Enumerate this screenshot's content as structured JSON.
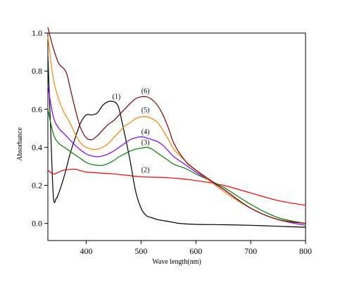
{
  "chart_data": {
    "type": "line",
    "title": "",
    "xlabel": "Wave length(nm)",
    "ylabel": "Absorbance",
    "xlim": [
      330,
      800
    ],
    "ylim": [
      -0.09,
      1.0
    ],
    "x_ticks": [
      400,
      500,
      600,
      700,
      800
    ],
    "x_tick_labels": [
      "400",
      "500",
      "600",
      "700",
      "800"
    ],
    "y_ticks": [
      0.0,
      0.2,
      0.4,
      0.6,
      0.8,
      1.0
    ],
    "y_tick_labels": [
      "0.0",
      "0.2",
      "0.4",
      "0.6",
      "0.8",
      "1.0"
    ],
    "grid": false,
    "series": [
      {
        "name": "(1)",
        "color": "#000000",
        "x": [
          330,
          335,
          340,
          345,
          350,
          360,
          370,
          380,
          390,
          400,
          410,
          420,
          430,
          440,
          450,
          455,
          460,
          470,
          480,
          490,
          500,
          510,
          520,
          530,
          540,
          550,
          560,
          570,
          600,
          650,
          700,
          750,
          800
        ],
        "y": [
          0.88,
          0.5,
          0.14,
          0.13,
          0.16,
          0.25,
          0.36,
          0.45,
          0.53,
          0.57,
          0.57,
          0.58,
          0.62,
          0.64,
          0.64,
          0.63,
          0.6,
          0.47,
          0.33,
          0.17,
          0.08,
          0.04,
          0.03,
          0.02,
          0.015,
          0.01,
          0.005,
          0.0,
          -0.005,
          -0.007,
          -0.01,
          -0.015,
          -0.02
        ]
      },
      {
        "name": "(2)",
        "color": "#ff0000",
        "x": [
          330,
          340,
          350,
          360,
          380,
          400,
          450,
          500,
          550,
          600,
          650,
          700,
          750,
          800
        ],
        "y": [
          0.28,
          0.26,
          0.27,
          0.28,
          0.285,
          0.27,
          0.26,
          0.245,
          0.24,
          0.225,
          0.2,
          0.16,
          0.12,
          0.095
        ]
      },
      {
        "name": "(3)",
        "color": "#008000",
        "x": [
          330,
          340,
          350,
          360,
          370,
          380,
          390,
          400,
          410,
          420,
          430,
          440,
          450,
          460,
          470,
          480,
          490,
          500,
          510,
          520,
          530,
          540,
          550,
          560,
          580,
          600,
          650,
          700,
          750,
          800
        ],
        "y": [
          0.6,
          0.47,
          0.42,
          0.4,
          0.38,
          0.36,
          0.34,
          0.32,
          0.31,
          0.305,
          0.305,
          0.315,
          0.33,
          0.35,
          0.365,
          0.38,
          0.39,
          0.395,
          0.4,
          0.39,
          0.37,
          0.35,
          0.33,
          0.31,
          0.29,
          0.26,
          0.19,
          0.1,
          0.03,
          0.0
        ]
      },
      {
        "name": "(4)",
        "color": "#8000ff",
        "x": [
          330,
          340,
          350,
          360,
          370,
          380,
          390,
          400,
          410,
          420,
          430,
          440,
          450,
          460,
          470,
          480,
          490,
          500,
          510,
          520,
          530,
          540,
          550,
          560,
          580,
          600,
          650,
          700,
          750,
          800
        ],
        "y": [
          0.72,
          0.56,
          0.5,
          0.47,
          0.44,
          0.41,
          0.385,
          0.365,
          0.355,
          0.35,
          0.355,
          0.365,
          0.38,
          0.4,
          0.42,
          0.44,
          0.45,
          0.455,
          0.45,
          0.44,
          0.43,
          0.41,
          0.38,
          0.35,
          0.31,
          0.27,
          0.18,
          0.08,
          0.02,
          -0.01
        ]
      },
      {
        "name": "(5)",
        "color": "#ff8000",
        "x": [
          330,
          340,
          350,
          360,
          370,
          380,
          390,
          400,
          410,
          420,
          430,
          440,
          450,
          460,
          470,
          480,
          490,
          500,
          510,
          520,
          530,
          540,
          550,
          560,
          580,
          600,
          650,
          700,
          750,
          800
        ],
        "y": [
          0.98,
          0.76,
          0.65,
          0.58,
          0.53,
          0.47,
          0.42,
          0.4,
          0.39,
          0.39,
          0.4,
          0.42,
          0.45,
          0.48,
          0.51,
          0.53,
          0.55,
          0.56,
          0.56,
          0.55,
          0.53,
          0.49,
          0.44,
          0.39,
          0.33,
          0.28,
          0.17,
          0.08,
          0.02,
          0.0
        ]
      },
      {
        "name": "(6)",
        "color": "#800000",
        "x": [
          330,
          340,
          350,
          360,
          365,
          370,
          380,
          390,
          400,
          410,
          420,
          430,
          440,
          450,
          460,
          470,
          480,
          490,
          500,
          510,
          520,
          530,
          540,
          550,
          560,
          580,
          600,
          650,
          700,
          750,
          800
        ],
        "y": [
          1.03,
          0.92,
          0.84,
          0.81,
          0.78,
          0.72,
          0.6,
          0.5,
          0.45,
          0.44,
          0.46,
          0.49,
          0.52,
          0.54,
          0.57,
          0.6,
          0.63,
          0.655,
          0.665,
          0.665,
          0.65,
          0.62,
          0.57,
          0.5,
          0.42,
          0.33,
          0.28,
          0.18,
          0.08,
          0.02,
          0.0
        ]
      }
    ],
    "annotations": [
      {
        "text": "(1)",
        "x": 455,
        "y": 0.655
      },
      {
        "text": "(6)",
        "x": 508,
        "y": 0.685
      },
      {
        "text": "(5)",
        "x": 508,
        "y": 0.585
      },
      {
        "text": "(4)",
        "x": 508,
        "y": 0.47
      },
      {
        "text": "(3)",
        "x": 508,
        "y": 0.415
      },
      {
        "text": "(2)",
        "x": 508,
        "y": 0.27
      }
    ]
  }
}
